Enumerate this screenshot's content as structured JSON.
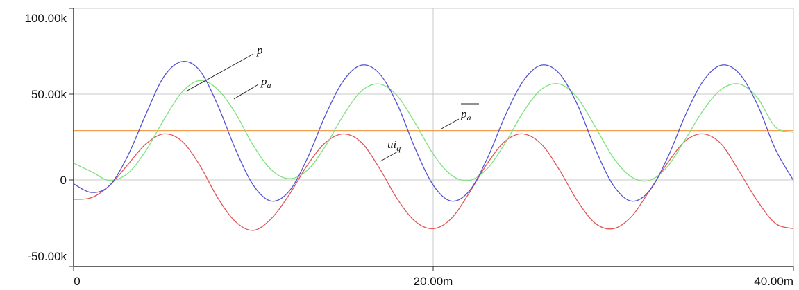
{
  "chart_data": {
    "type": "line",
    "title": "",
    "xlabel": "",
    "ylabel": "",
    "xlim": [
      0,
      40
    ],
    "ylim": [
      -50000,
      100000
    ],
    "grid": true,
    "x_ticks": [
      "0",
      "20.00m",
      "40.00m"
    ],
    "y_ticks": [
      "100.00k",
      "50.00k",
      "0",
      "-50.00k"
    ],
    "x_tick_values": [
      0,
      20,
      40
    ],
    "y_tick_values": [
      100000,
      50000,
      0,
      -50000
    ],
    "x_unit": "ms",
    "colors": {
      "p": "#5252d4",
      "pa": "#7ee07e",
      "pa_mean": "#f0a050",
      "uiq": "#e05555",
      "grid": "#c8c8c8",
      "axis": "#333333"
    },
    "series": [
      {
        "name": "p",
        "color": "#5252d4",
        "x": [
          0,
          1,
          2,
          3,
          4,
          5,
          6,
          7,
          8,
          9,
          10,
          11,
          12,
          13,
          14,
          15,
          16,
          17,
          18,
          19,
          20,
          21,
          22,
          23,
          24,
          25,
          26,
          27,
          28,
          29,
          30,
          31,
          32,
          33,
          34,
          35,
          36,
          37,
          38,
          39,
          40
        ],
        "values": [
          -2000,
          -7000,
          -3000,
          14000,
          38000,
          60000,
          69000,
          64000,
          44000,
          18000,
          -3000,
          -12000,
          -6000,
          13000,
          38000,
          58000,
          67000,
          62000,
          44000,
          18000,
          -3000,
          -12000,
          -6000,
          13000,
          38000,
          58000,
          67000,
          62000,
          44000,
          18000,
          -3000,
          -12000,
          -6000,
          13000,
          38000,
          58000,
          67000,
          62000,
          44000,
          18000,
          0
        ]
      },
      {
        "name": "p_a",
        "color": "#7ee07e",
        "x": [
          0,
          1,
          2,
          3,
          4,
          5,
          6,
          7,
          8,
          9,
          10,
          11,
          12,
          13,
          14,
          15,
          16,
          17,
          18,
          19,
          20,
          21,
          22,
          23,
          24,
          25,
          26,
          27,
          28,
          29,
          30,
          31,
          32,
          33,
          34,
          35,
          36,
          37,
          38,
          39,
          40
        ],
        "values": [
          10000,
          5000,
          0,
          4000,
          17000,
          35000,
          51000,
          58000,
          53000,
          39000,
          20000,
          6000,
          1000,
          6000,
          20000,
          38000,
          52000,
          56000,
          49000,
          33000,
          15000,
          3000,
          0,
          7000,
          22000,
          40000,
          53000,
          56000,
          48000,
          31000,
          13000,
          2000,
          0,
          8000,
          24000,
          41000,
          53000,
          56000,
          48000,
          31000,
          28000
        ]
      },
      {
        "name": "p̄_a",
        "color": "#f0a050",
        "x": [
          0,
          40
        ],
        "values": [
          29000,
          29000
        ]
      },
      {
        "name": "ui_q",
        "color": "#e05555",
        "x": [
          0,
          1,
          2,
          3,
          4,
          5,
          6,
          7,
          8,
          9,
          10,
          11,
          12,
          13,
          14,
          15,
          16,
          17,
          18,
          19,
          20,
          21,
          22,
          23,
          24,
          25,
          26,
          27,
          28,
          29,
          30,
          31,
          32,
          33,
          34,
          35,
          36,
          37,
          38,
          39,
          40
        ],
        "values": [
          -11000,
          -10000,
          -3000,
          9000,
          21000,
          27000,
          23000,
          9000,
          -10000,
          -24000,
          -29000,
          -22000,
          -8000,
          9000,
          22000,
          27000,
          22000,
          7000,
          -11000,
          -24000,
          -28000,
          -22000,
          -7000,
          10000,
          23000,
          27000,
          21000,
          6000,
          -12000,
          -25000,
          -28000,
          -21000,
          -6000,
          10000,
          23000,
          27000,
          21000,
          5000,
          -12000,
          -25000,
          -28000
        ]
      }
    ],
    "annotations": [
      {
        "series": "p",
        "label": "p",
        "sub": ""
      },
      {
        "series": "p_a",
        "label": "p",
        "sub": "a"
      },
      {
        "series": "p̄_a",
        "label": "p",
        "sub": "a",
        "overline": true
      },
      {
        "series": "ui_q",
        "label": "ui",
        "sub": "q"
      }
    ]
  }
}
